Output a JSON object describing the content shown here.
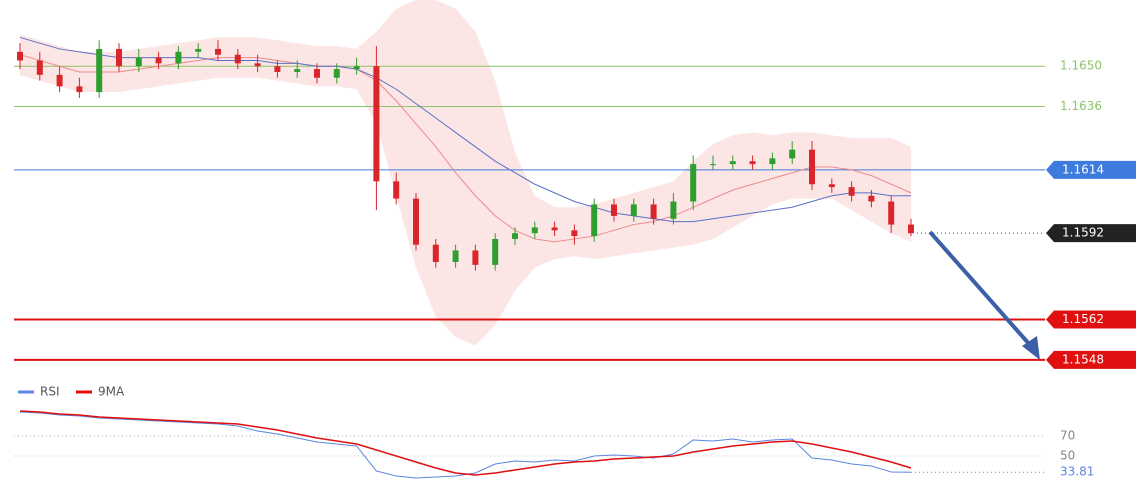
{
  "chart_data": [
    {
      "type": "candlestick",
      "ylim": [
        1.1541,
        1.1673
      ],
      "up_color": "#2e9e2e",
      "down_color": "#d9262b",
      "open": [
        1.1655,
        1.1652,
        1.1647,
        1.1643,
        1.1641,
        1.1656,
        1.165,
        1.1653,
        1.1651,
        1.1655,
        1.1656,
        1.1654,
        1.1651,
        1.165,
        1.1648,
        1.1649,
        1.1646,
        1.1649,
        1.165,
        1.161,
        1.1604,
        1.1588,
        1.1582,
        1.1586,
        1.1581,
        1.159,
        1.1592,
        1.1594,
        1.1593,
        1.1591,
        1.1602,
        1.1598,
        1.1602,
        1.1597,
        1.1603,
        1.1616,
        1.1616,
        1.1617,
        1.1616,
        1.1618,
        1.1621,
        1.1609,
        1.1608,
        1.1605,
        1.1603,
        1.1595
      ],
      "high": [
        1.1658,
        1.1655,
        1.165,
        1.1646,
        1.1659,
        1.1658,
        1.1656,
        1.1655,
        1.1657,
        1.1658,
        1.1659,
        1.1656,
        1.1654,
        1.1652,
        1.1652,
        1.1651,
        1.1651,
        1.1653,
        1.1657,
        1.1613,
        1.1606,
        1.159,
        1.1588,
        1.1588,
        1.1592,
        1.1594,
        1.1596,
        1.1596,
        1.1595,
        1.1604,
        1.1604,
        1.1604,
        1.1604,
        1.1606,
        1.1619,
        1.1619,
        1.1619,
        1.1619,
        1.162,
        1.1624,
        1.1624,
        1.1611,
        1.161,
        1.1607,
        1.1605,
        1.1597
      ],
      "low": [
        1.1649,
        1.1645,
        1.1641,
        1.1639,
        1.1639,
        1.1648,
        1.1648,
        1.1649,
        1.1649,
        1.1653,
        1.1652,
        1.1649,
        1.1648,
        1.1646,
        1.1646,
        1.1644,
        1.1644,
        1.1647,
        1.16,
        1.1602,
        1.1586,
        1.158,
        1.158,
        1.1579,
        1.1579,
        1.1588,
        1.159,
        1.1591,
        1.1588,
        1.1589,
        1.1596,
        1.1596,
        1.1595,
        1.1595,
        1.16,
        1.1614,
        1.1614,
        1.1614,
        1.1614,
        1.1616,
        1.1607,
        1.1606,
        1.1603,
        1.1601,
        1.1592,
        1.1591
      ],
      "close": [
        1.1652,
        1.1647,
        1.1643,
        1.1641,
        1.1656,
        1.165,
        1.1653,
        1.1651,
        1.1655,
        1.1656,
        1.1654,
        1.1651,
        1.165,
        1.1648,
        1.1649,
        1.1646,
        1.1649,
        1.165,
        1.161,
        1.1604,
        1.1588,
        1.1582,
        1.1586,
        1.1581,
        1.159,
        1.1592,
        1.1594,
        1.1593,
        1.1591,
        1.1602,
        1.1598,
        1.1602,
        1.1597,
        1.1603,
        1.1616,
        1.1616,
        1.1617,
        1.1616,
        1.1618,
        1.1621,
        1.1609,
        1.1608,
        1.1605,
        1.1603,
        1.1595,
        1.1592
      ],
      "band": {
        "color": "#fbdcdc",
        "upper": [
          1.1661,
          1.1659,
          1.1657,
          1.1655,
          1.1655,
          1.1655,
          1.1656,
          1.1657,
          1.1658,
          1.1659,
          1.166,
          1.166,
          1.166,
          1.1659,
          1.1658,
          1.1657,
          1.1657,
          1.1656,
          1.1662,
          1.167,
          1.1673,
          1.1673,
          1.167,
          1.1662,
          1.1645,
          1.162,
          1.1605,
          1.1601,
          1.1601,
          1.1602,
          1.1604,
          1.1606,
          1.1608,
          1.161,
          1.1617,
          1.1623,
          1.1626,
          1.1627,
          1.1626,
          1.1627,
          1.1627,
          1.1626,
          1.1625,
          1.1625,
          1.1625,
          1.1622
        ],
        "lower": [
          1.1647,
          1.1645,
          1.1643,
          1.1641,
          1.1641,
          1.1641,
          1.1642,
          1.1643,
          1.1644,
          1.1645,
          1.1646,
          1.1646,
          1.1646,
          1.1645,
          1.1644,
          1.1643,
          1.1643,
          1.1642,
          1.163,
          1.1605,
          1.158,
          1.1563,
          1.1556,
          1.1553,
          1.156,
          1.1572,
          1.158,
          1.1583,
          1.1584,
          1.1583,
          1.1584,
          1.1585,
          1.1586,
          1.1587,
          1.1588,
          1.159,
          1.1594,
          1.1598,
          1.1602,
          1.1604,
          1.1604,
          1.1604,
          1.16,
          1.1596,
          1.1592,
          1.1589
        ]
      },
      "lines": [
        {
          "color": "#ee8a8a",
          "values": [
            1.1654,
            1.1652,
            1.165,
            1.1648,
            1.1648,
            1.1648,
            1.1649,
            1.165,
            1.1651,
            1.1652,
            1.1653,
            1.1653,
            1.1653,
            1.1652,
            1.1651,
            1.165,
            1.165,
            1.1649,
            1.1645,
            1.1638,
            1.163,
            1.1622,
            1.1613,
            1.1605,
            1.1598,
            1.1593,
            1.159,
            1.1589,
            1.159,
            1.1591,
            1.1593,
            1.1595,
            1.1596,
            1.1598,
            1.1601,
            1.1604,
            1.1607,
            1.1609,
            1.1611,
            1.1613,
            1.1615,
            1.1615,
            1.1614,
            1.1612,
            1.1609,
            1.1606
          ]
        },
        {
          "color": "#5b72c6",
          "values": [
            1.166,
            1.1658,
            1.1656,
            1.1655,
            1.1654,
            1.1653,
            1.1653,
            1.1653,
            1.1653,
            1.1653,
            1.1652,
            1.1652,
            1.1652,
            1.1651,
            1.1651,
            1.165,
            1.165,
            1.1649,
            1.1646,
            1.1642,
            1.1637,
            1.1632,
            1.1627,
            1.1622,
            1.1617,
            1.1613,
            1.1609,
            1.1606,
            1.1603,
            1.1601,
            1.1599,
            1.1598,
            1.1597,
            1.1596,
            1.1596,
            1.1597,
            1.1598,
            1.1599,
            1.16,
            1.1601,
            1.1603,
            1.1605,
            1.1606,
            1.1606,
            1.1605,
            1.1605
          ]
        }
      ],
      "levels": [
        {
          "value": 1.165,
          "label": "1.1650",
          "color": "#8cc46a",
          "style": "text"
        },
        {
          "value": 1.1636,
          "color": "#8cc46a",
          "style": "text"
        },
        {
          "value": 1.1614,
          "color": "#3d7bdc",
          "style": "box"
        },
        {
          "value": 1.1592,
          "color": "#222222",
          "style": "current"
        },
        {
          "value": 1.1562,
          "color": "#e01010",
          "style": "box"
        },
        {
          "value": 1.1548,
          "color": "#e01010",
          "style": "box"
        }
      ]
    },
    {
      "type": "line",
      "ylim": [
        16,
        101
      ],
      "yticks": [
        70,
        50
      ],
      "series": [
        {
          "name": "RSI",
          "color": "#5b85e0",
          "values": [
            94,
            93,
            91,
            90,
            88,
            87,
            86,
            85,
            84,
            83,
            82,
            80,
            75,
            72,
            68,
            64,
            62,
            60,
            35,
            30,
            28,
            29,
            30,
            33,
            42,
            45,
            44,
            46,
            45,
            50,
            51,
            50,
            48,
            52,
            66,
            65,
            67,
            64,
            66,
            67,
            48,
            46,
            42,
            40,
            34,
            33.81
          ]
        },
        {
          "name": "9MA",
          "color": "#e01010",
          "values": [
            95,
            94,
            92,
            91,
            89,
            88,
            87,
            86,
            85,
            84,
            83,
            82,
            79,
            76,
            72,
            68,
            65,
            62,
            56,
            50,
            44,
            38,
            33,
            31,
            33,
            36,
            39,
            42,
            44,
            45,
            47,
            48,
            49,
            50,
            54,
            57,
            60,
            62,
            64,
            65,
            62,
            58,
            54,
            49,
            44,
            38
          ]
        }
      ]
    }
  ]
}
